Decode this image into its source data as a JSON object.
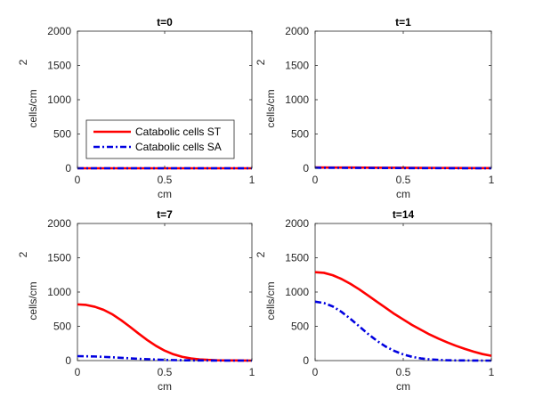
{
  "chart_data": [
    {
      "type": "line",
      "title": "t=0",
      "xlabel": "cm",
      "ylabel": "cells/cm",
      "ylabel_sup": "2",
      "xlim": [
        0,
        1
      ],
      "ylim": [
        0,
        2000
      ],
      "xticks": [
        "0",
        "0.5",
        "1"
      ],
      "yticks": [
        "0",
        "500",
        "1000",
        "1500",
        "2000"
      ],
      "show_legend": true,
      "series": [
        {
          "name": "Catabolic cells ST",
          "x": [
            0,
            0.25,
            0.5,
            0.75,
            1
          ],
          "values": [
            0,
            0,
            0,
            0,
            0
          ]
        },
        {
          "name": "Catabolic cells SA",
          "x": [
            0,
            0.25,
            0.5,
            0.75,
            1
          ],
          "values": [
            0,
            0,
            0,
            0,
            0
          ]
        }
      ]
    },
    {
      "type": "line",
      "title": "t=1",
      "xlabel": "cm",
      "ylabel": "cells/cm",
      "ylabel_sup": "2",
      "xlim": [
        0,
        1
      ],
      "ylim": [
        0,
        2000
      ],
      "xticks": [
        "0",
        "0.5",
        "1"
      ],
      "yticks": [
        "0",
        "500",
        "1000",
        "1500",
        "2000"
      ],
      "show_legend": false,
      "series": [
        {
          "name": "Catabolic cells ST",
          "x": [
            0,
            0.1,
            0.2,
            0.3,
            0.4,
            0.5,
            0.6,
            0.7,
            0.8,
            0.9,
            1
          ],
          "values": [
            12,
            11,
            10,
            9,
            8,
            7,
            6,
            5,
            4,
            3,
            2
          ]
        },
        {
          "name": "Catabolic cells SA",
          "x": [
            0,
            0.1,
            0.2,
            0.3,
            0.4,
            0.5,
            0.6,
            0.7,
            0.8,
            0.9,
            1
          ],
          "values": [
            8,
            7,
            6,
            5,
            4,
            3,
            2,
            2,
            1,
            1,
            1
          ]
        }
      ]
    },
    {
      "type": "line",
      "title": "t=7",
      "xlabel": "cm",
      "ylabel": "cells/cm",
      "ylabel_sup": "2",
      "xlim": [
        0,
        1
      ],
      "ylim": [
        0,
        2000
      ],
      "xticks": [
        "0",
        "0.5",
        "1"
      ],
      "yticks": [
        "0",
        "500",
        "1000",
        "1500",
        "2000"
      ],
      "show_legend": false,
      "series": [
        {
          "name": "Catabolic cells ST",
          "x": [
            0,
            0.05,
            0.1,
            0.15,
            0.2,
            0.25,
            0.3,
            0.35,
            0.4,
            0.45,
            0.5,
            0.55,
            0.6,
            0.65,
            0.7,
            0.75,
            0.8,
            0.85,
            0.9,
            0.95,
            1
          ],
          "values": [
            820,
            812,
            785,
            740,
            675,
            590,
            495,
            395,
            300,
            215,
            145,
            92,
            55,
            32,
            18,
            10,
            5,
            3,
            2,
            1,
            0
          ]
        },
        {
          "name": "Catabolic cells SA",
          "x": [
            0,
            0.1,
            0.2,
            0.3,
            0.4,
            0.5,
            0.6,
            0.7,
            0.8,
            0.9,
            1
          ],
          "values": [
            65,
            60,
            48,
            33,
            20,
            10,
            5,
            2,
            1,
            0,
            0
          ]
        }
      ]
    },
    {
      "type": "line",
      "title": "t=14",
      "xlabel": "cm",
      "ylabel": "cells/cm",
      "ylabel_sup": "2",
      "xlim": [
        0,
        1
      ],
      "ylim": [
        0,
        2000
      ],
      "xticks": [
        "0",
        "0.5",
        "1"
      ],
      "yticks": [
        "0",
        "500",
        "1000",
        "1500",
        "2000"
      ],
      "show_legend": false,
      "series": [
        {
          "name": "Catabolic cells ST",
          "x": [
            0,
            0.05,
            0.1,
            0.15,
            0.2,
            0.25,
            0.3,
            0.35,
            0.4,
            0.45,
            0.5,
            0.55,
            0.6,
            0.65,
            0.7,
            0.75,
            0.8,
            0.85,
            0.9,
            0.95,
            1
          ],
          "values": [
            1290,
            1280,
            1245,
            1190,
            1120,
            1040,
            950,
            860,
            770,
            680,
            600,
            520,
            450,
            380,
            320,
            265,
            215,
            170,
            130,
            95,
            70
          ]
        },
        {
          "name": "Catabolic cells SA",
          "x": [
            0,
            0.05,
            0.1,
            0.15,
            0.2,
            0.25,
            0.3,
            0.35,
            0.4,
            0.45,
            0.5,
            0.55,
            0.6,
            0.65,
            0.7,
            0.75,
            0.8,
            0.85,
            0.9,
            0.95,
            1
          ],
          "values": [
            860,
            840,
            790,
            710,
            610,
            500,
            390,
            290,
            205,
            140,
            90,
            55,
            32,
            18,
            10,
            5,
            3,
            2,
            1,
            0,
            0
          ]
        }
      ]
    }
  ],
  "colors": {
    "st": "#ff0000",
    "sa": "#0000e0",
    "axis": "#262626"
  }
}
